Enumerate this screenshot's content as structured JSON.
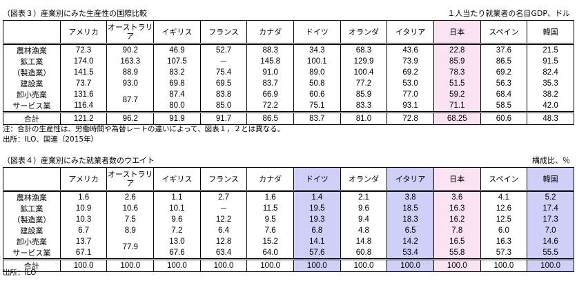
{
  "table3": {
    "caption": "（図表３）産業別にみた生産性の国際比較",
    "unit": "１人当たり就業者の名目GDP、ドル",
    "columns": [
      "アメリカ",
      "オーストラリア",
      "イギリス",
      "フランス",
      "カナダ",
      "ドイツ",
      "オランダ",
      "イタリア",
      "日本",
      "スペイン",
      "韓国"
    ],
    "highlight": {
      "日本": "#fbe3f4"
    },
    "rows": [
      {
        "label": "農林漁業",
        "values": [
          "72.3",
          "90.2",
          "46.9",
          "52.7",
          "88.3",
          "34.3",
          "68.3",
          "43.6",
          "22.8",
          "37.6",
          "21.5"
        ]
      },
      {
        "label": "鉱工業",
        "values": [
          "174.0",
          "163.3",
          "107.5",
          "－",
          "145.8",
          "100.1",
          "129.9",
          "73.9",
          "85.9",
          "86.5",
          "91.5"
        ]
      },
      {
        "label": "（製造業）",
        "values": [
          "141.5",
          "88.9",
          "83.2",
          "75.4",
          "91.0",
          "89.0",
          "100.4",
          "69.2",
          "78.3",
          "69.2",
          "82.4"
        ]
      },
      {
        "label": "建設業",
        "values": [
          "73.7",
          "93.0",
          "69.8",
          "69.5",
          "83.7",
          "50.8",
          "77.2",
          "53.0",
          "51.5",
          "56.3",
          "35.3"
        ]
      },
      {
        "label": "卸小売業",
        "values": [
          "131.6",
          "",
          "87.4",
          "83.8",
          "66.9",
          "60.6",
          "85.9",
          "77.0",
          "59.2",
          "68.4",
          "38.2"
        ]
      },
      {
        "label": "サービス業",
        "values": [
          "116.4",
          "",
          "80.0",
          "85.0",
          "72.2",
          "75.1",
          "83.3",
          "93.1",
          "71.1",
          "58.5",
          "42.0"
        ]
      }
    ],
    "merged_au": "87.7",
    "total": {
      "label": "合計",
      "values": [
        "121.2",
        "96.2",
        "91.9",
        "91.7",
        "86.5",
        "83.7",
        "81.0",
        "72.8",
        "68.25",
        "60.6",
        "48.3"
      ]
    },
    "note1": "注：合計の生産性は、労働時間や為替レートの違いによって、図表１，２とは異なる。",
    "note2": "出所：ILO、国連（2015年）"
  },
  "table4": {
    "caption": "（図表４）産業別にみた就業者数のウエイト",
    "unit": "構成比、％",
    "columns": [
      "アメリカ",
      "オーストラリア",
      "イギリス",
      "フランス",
      "カナダ",
      "ドイツ",
      "オランダ",
      "イタリア",
      "日本",
      "スペイン",
      "韓国"
    ],
    "highlight": {
      "ドイツ": "#cfcff7",
      "イタリア": "#cfcff7",
      "日本": "#fbe3f4",
      "韓国": "#cfcff7"
    },
    "rows": [
      {
        "label": "農林漁業",
        "values": [
          "1.6",
          "2.6",
          "1.1",
          "2.7",
          "1.6",
          "1.4",
          "2.1",
          "3.8",
          "3.6",
          "4.1",
          "5.2"
        ]
      },
      {
        "label": "鉱工業",
        "values": [
          "10.9",
          "10.6",
          "10.1",
          "－",
          "11.5",
          "19.5",
          "9.6",
          "18.5",
          "16.3",
          "12.6",
          "17.4"
        ]
      },
      {
        "label": "（製造業）",
        "values": [
          "10.3",
          "7.5",
          "9.6",
          "12.2",
          "9.5",
          "19.3",
          "9.4",
          "18.3",
          "16.2",
          "12.5",
          "17.3"
        ]
      },
      {
        "label": "建設業",
        "values": [
          "6.7",
          "8.9",
          "7.2",
          "6.4",
          "7.6",
          "6.8",
          "4.8",
          "6.5",
          "7.8",
          "6.0",
          "7.0"
        ]
      },
      {
        "label": "卸小売業",
        "values": [
          "13.7",
          "",
          "13.0",
          "12.8",
          "15.2",
          "14.1",
          "14.8",
          "14.2",
          "16.5",
          "16.3",
          "14.6"
        ]
      },
      {
        "label": "サービス業",
        "values": [
          "67.1",
          "",
          "67.6",
          "63.4",
          "64.0",
          "57.6",
          "60.8",
          "53.4",
          "55.8",
          "57.3",
          "55.5"
        ]
      }
    ],
    "merged_au": "77.9",
    "total": {
      "label": "合計",
      "values": [
        "100.0",
        "100.0",
        "100.0",
        "100.0",
        "100.0",
        "100.0",
        "100.0",
        "100.0",
        "100.0",
        "100.0",
        "100.0"
      ]
    },
    "note": "出所：ILO"
  }
}
